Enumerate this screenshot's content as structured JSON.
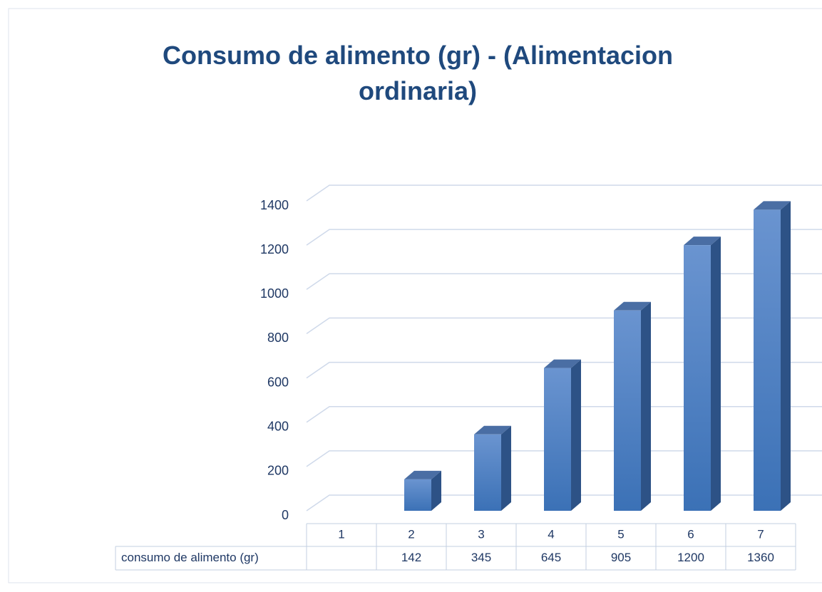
{
  "chart_data": {
    "type": "bar3d",
    "title": "Consumo de alimento (gr) - (Alimentacion ordinaria)",
    "categories": [
      "1",
      "2",
      "3",
      "4",
      "5",
      "6",
      "7"
    ],
    "series": [
      {
        "name": "consumo de alimento (gr)",
        "color": "#4472c4",
        "values": [
          null,
          142,
          345,
          645,
          905,
          1200,
          1360
        ]
      }
    ],
    "ylim": [
      0,
      1400
    ],
    "yticks": [
      0,
      200,
      400,
      600,
      800,
      1000,
      1200,
      1400
    ],
    "grid": true,
    "data_table": true
  }
}
